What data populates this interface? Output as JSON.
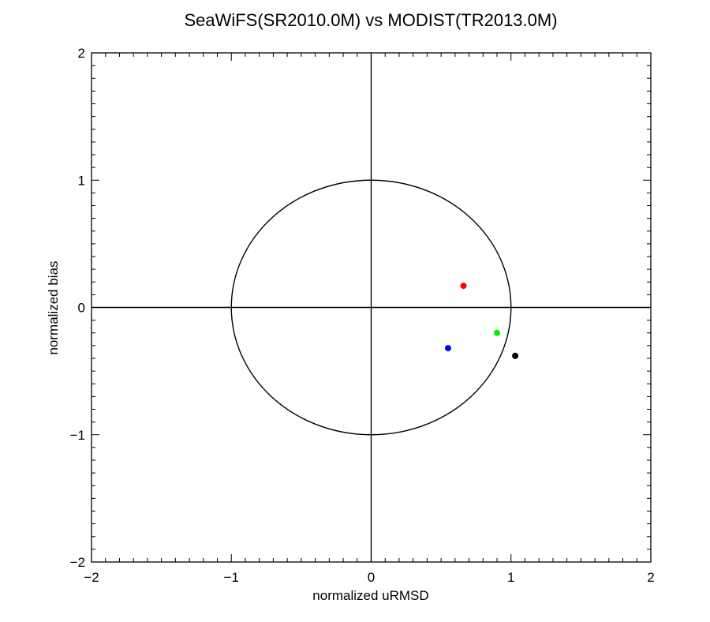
{
  "chart_data": {
    "type": "scatter",
    "title": "SeaWiFS(SR2010.0M) vs MODIST(TR2013.0M)",
    "xlabel": "normalized uRMSD",
    "ylabel": "normalized bias",
    "xlim": [
      -2,
      2
    ],
    "ylim": [
      -2,
      2
    ],
    "x_ticks": [
      -2,
      -1,
      0,
      1,
      2
    ],
    "y_ticks": [
      -2,
      -1,
      0,
      1,
      2
    ],
    "x_tick_labels": [
      "−2",
      "−1",
      "0",
      "1",
      "2"
    ],
    "y_tick_labels": [
      "−2",
      "−1",
      "0",
      "1",
      "2"
    ],
    "reference_circle_radius": 1,
    "axis_cross_lines": true,
    "grid": false,
    "points": [
      {
        "x": 0.66,
        "y": 0.17,
        "color": "#ff0000"
      },
      {
        "x": 0.9,
        "y": -0.2,
        "color": "#00ee00"
      },
      {
        "x": 0.55,
        "y": -0.32,
        "color": "#0000ff"
      },
      {
        "x": 1.03,
        "y": -0.38,
        "color": "#000000"
      }
    ]
  }
}
